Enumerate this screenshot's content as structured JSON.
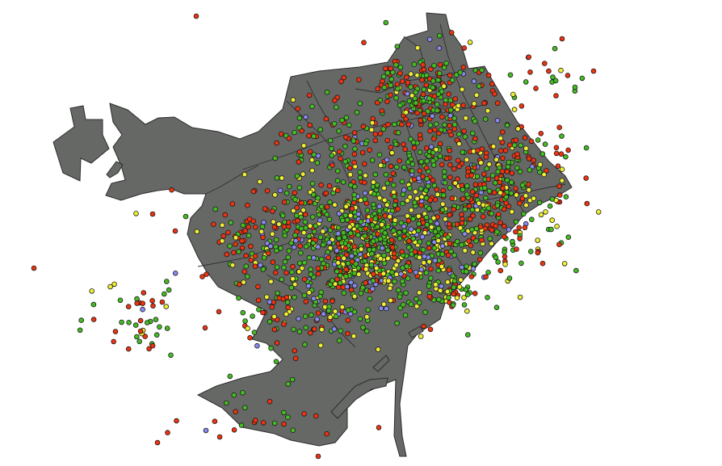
{
  "map": {
    "category_colors": {
      "red": "#ee3311",
      "green": "#44bb22",
      "yellow": "#eeee33",
      "blue": "#8888ee"
    }
  }
}
